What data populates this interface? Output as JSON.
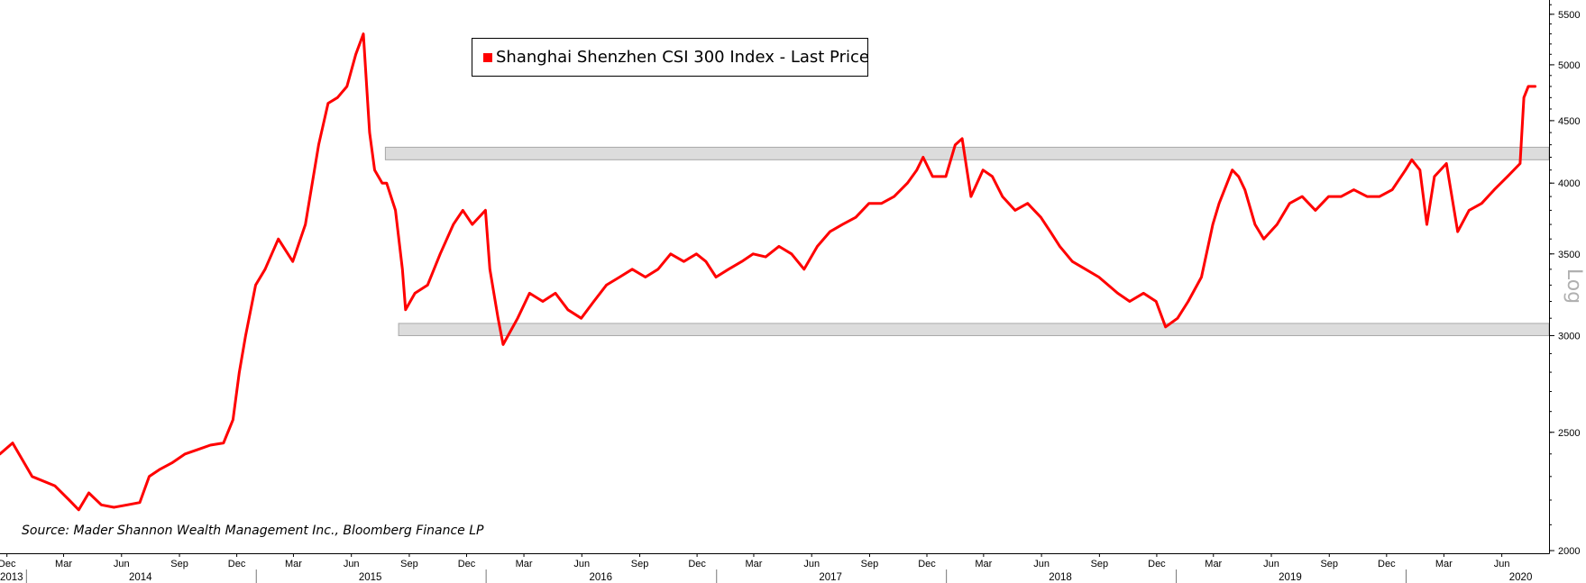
{
  "chart_data": {
    "type": "line",
    "legend": "Shanghai Shenzhen CSI 300 Index - Last Price",
    "legend_placement": "top-center",
    "source": "Source: Mader Shannon Wealth Management Inc., Bloomberg Finance LP",
    "scale_label": "Log",
    "y_scale": "log",
    "ylim": [
      1990,
      5650
    ],
    "y_ticks": [
      2000,
      2500,
      3000,
      3500,
      4000,
      4500,
      5000,
      5500
    ],
    "xlim": [
      "2013-11-20",
      "2020-08-15"
    ],
    "x_month_ticks": [
      {
        "date": "2013-12-01",
        "label": "Dec"
      },
      {
        "date": "2014-03-01",
        "label": "Mar"
      },
      {
        "date": "2014-06-01",
        "label": "Jun"
      },
      {
        "date": "2014-09-01",
        "label": "Sep"
      },
      {
        "date": "2014-12-01",
        "label": "Dec"
      },
      {
        "date": "2015-03-01",
        "label": "Mar"
      },
      {
        "date": "2015-06-01",
        "label": "Jun"
      },
      {
        "date": "2015-09-01",
        "label": "Sep"
      },
      {
        "date": "2015-12-01",
        "label": "Dec"
      },
      {
        "date": "2016-03-01",
        "label": "Mar"
      },
      {
        "date": "2016-06-01",
        "label": "Jun"
      },
      {
        "date": "2016-09-01",
        "label": "Sep"
      },
      {
        "date": "2016-12-01",
        "label": "Dec"
      },
      {
        "date": "2017-03-01",
        "label": "Mar"
      },
      {
        "date": "2017-06-01",
        "label": "Jun"
      },
      {
        "date": "2017-09-01",
        "label": "Sep"
      },
      {
        "date": "2017-12-01",
        "label": "Dec"
      },
      {
        "date": "2018-03-01",
        "label": "Mar"
      },
      {
        "date": "2018-06-01",
        "label": "Jun"
      },
      {
        "date": "2018-09-01",
        "label": "Sep"
      },
      {
        "date": "2018-12-01",
        "label": "Dec"
      },
      {
        "date": "2019-03-01",
        "label": "Mar"
      },
      {
        "date": "2019-06-01",
        "label": "Jun"
      },
      {
        "date": "2019-09-01",
        "label": "Sep"
      },
      {
        "date": "2019-12-01",
        "label": "Dec"
      },
      {
        "date": "2020-03-01",
        "label": "Mar"
      },
      {
        "date": "2020-06-01",
        "label": "Jun"
      }
    ],
    "x_year_ticks": [
      {
        "date": "2013-12-01",
        "label": "2013"
      },
      {
        "date": "2014-07-01",
        "label": "2014"
      },
      {
        "date": "2015-07-01",
        "label": "2015"
      },
      {
        "date": "2016-07-01",
        "label": "2016"
      },
      {
        "date": "2017-07-01",
        "label": "2017"
      },
      {
        "date": "2018-07-01",
        "label": "2018"
      },
      {
        "date": "2019-07-01",
        "label": "2019"
      },
      {
        "date": "2020-07-01",
        "label": "2020"
      }
    ],
    "year_boundaries": [
      "2014-01-01",
      "2015-01-01",
      "2016-01-01",
      "2017-01-01",
      "2018-01-01",
      "2019-01-01",
      "2020-01-01"
    ],
    "bands": [
      {
        "from_date": "2015-07-25",
        "to_date": "2020-08-15",
        "low": 4180,
        "high": 4280
      },
      {
        "from_date": "2015-08-15",
        "to_date": "2020-08-15",
        "low": 3000,
        "high": 3070
      }
    ],
    "colors": {
      "series": "#ff0000",
      "band_fill": "#dcdcdc",
      "band_stroke": "#a8a8a8",
      "axis": "#000000"
    },
    "series": [
      {
        "name": "Shanghai Shenzhen CSI 300 Index - Last Price",
        "x": [
          "2013-11-20",
          "2013-12-10",
          "2014-01-10",
          "2014-02-15",
          "2014-03-10",
          "2014-03-25",
          "2014-04-10",
          "2014-04-30",
          "2014-05-20",
          "2014-06-10",
          "2014-06-30",
          "2014-07-15",
          "2014-07-31",
          "2014-08-20",
          "2014-09-10",
          "2014-09-30",
          "2014-10-20",
          "2014-11-10",
          "2014-11-25",
          "2014-12-05",
          "2014-12-15",
          "2014-12-31",
          "2015-01-15",
          "2015-02-05",
          "2015-02-28",
          "2015-03-20",
          "2015-04-10",
          "2015-04-25",
          "2015-05-10",
          "2015-05-25",
          "2015-06-08",
          "2015-06-20",
          "2015-06-30",
          "2015-07-08",
          "2015-07-20",
          "2015-07-27",
          "2015-08-10",
          "2015-08-21",
          "2015-08-26",
          "2015-09-10",
          "2015-09-30",
          "2015-10-20",
          "2015-11-10",
          "2015-11-25",
          "2015-12-10",
          "2015-12-31",
          "2016-01-07",
          "2016-01-20",
          "2016-01-28",
          "2016-02-20",
          "2016-03-10",
          "2016-03-31",
          "2016-04-20",
          "2016-05-10",
          "2016-05-31",
          "2016-06-20",
          "2016-07-10",
          "2016-07-31",
          "2016-08-20",
          "2016-09-10",
          "2016-09-30",
          "2016-10-20",
          "2016-11-10",
          "2016-11-30",
          "2016-12-15",
          "2016-12-31",
          "2017-01-20",
          "2017-02-10",
          "2017-02-28",
          "2017-03-20",
          "2017-04-10",
          "2017-04-30",
          "2017-05-20",
          "2017-06-10",
          "2017-06-30",
          "2017-07-20",
          "2017-08-10",
          "2017-08-31",
          "2017-09-20",
          "2017-10-10",
          "2017-10-31",
          "2017-11-15",
          "2017-11-25",
          "2017-12-10",
          "2017-12-31",
          "2018-01-15",
          "2018-01-26",
          "2018-02-09",
          "2018-02-28",
          "2018-03-15",
          "2018-03-31",
          "2018-04-20",
          "2018-05-10",
          "2018-05-31",
          "2018-06-15",
          "2018-06-30",
          "2018-07-20",
          "2018-08-10",
          "2018-08-31",
          "2018-09-15",
          "2018-09-30",
          "2018-10-19",
          "2018-11-10",
          "2018-11-30",
          "2018-12-15",
          "2019-01-03",
          "2019-01-20",
          "2019-02-10",
          "2019-02-28",
          "2019-03-10",
          "2019-03-31",
          "2019-04-10",
          "2019-04-20",
          "2019-05-06",
          "2019-05-20",
          "2019-06-10",
          "2019-06-30",
          "2019-07-20",
          "2019-08-10",
          "2019-08-31",
          "2019-09-20",
          "2019-10-10",
          "2019-10-31",
          "2019-11-20",
          "2019-12-10",
          "2019-12-31",
          "2020-01-10",
          "2020-01-23",
          "2020-02-03",
          "2020-02-15",
          "2020-03-05",
          "2020-03-23",
          "2020-04-10",
          "2020-04-30",
          "2020-05-20",
          "2020-06-10",
          "2020-06-30",
          "2020-07-06",
          "2020-07-13",
          "2020-07-24"
        ],
        "values": [
          2400,
          2450,
          2300,
          2260,
          2200,
          2160,
          2230,
          2180,
          2170,
          2180,
          2190,
          2300,
          2330,
          2360,
          2400,
          2420,
          2440,
          2450,
          2560,
          2800,
          3000,
          3300,
          3400,
          3600,
          3450,
          3700,
          4300,
          4650,
          4700,
          4800,
          5100,
          5300,
          4400,
          4100,
          4000,
          4000,
          3800,
          3400,
          3150,
          3250,
          3300,
          3500,
          3700,
          3800,
          3700,
          3800,
          3400,
          3100,
          2950,
          3100,
          3250,
          3200,
          3250,
          3150,
          3100,
          3200,
          3300,
          3350,
          3400,
          3350,
          3400,
          3500,
          3450,
          3500,
          3450,
          3350,
          3400,
          3450,
          3500,
          3480,
          3550,
          3500,
          3400,
          3550,
          3650,
          3700,
          3750,
          3850,
          3850,
          3900,
          4000,
          4100,
          4200,
          4050,
          4050,
          4300,
          4350,
          3900,
          4100,
          4050,
          3900,
          3800,
          3850,
          3750,
          3650,
          3550,
          3450,
          3400,
          3350,
          3300,
          3250,
          3200,
          3250,
          3200,
          3050,
          3100,
          3200,
          3350,
          3700,
          3850,
          4100,
          4050,
          3950,
          3700,
          3600,
          3700,
          3850,
          3900,
          3800,
          3900,
          3900,
          3950,
          3900,
          3900,
          3950,
          4100,
          4180,
          4100,
          3700,
          4050,
          4150,
          3650,
          3800,
          3850,
          3950,
          4050,
          4150,
          4700,
          4800,
          4800
        ]
      }
    ]
  }
}
